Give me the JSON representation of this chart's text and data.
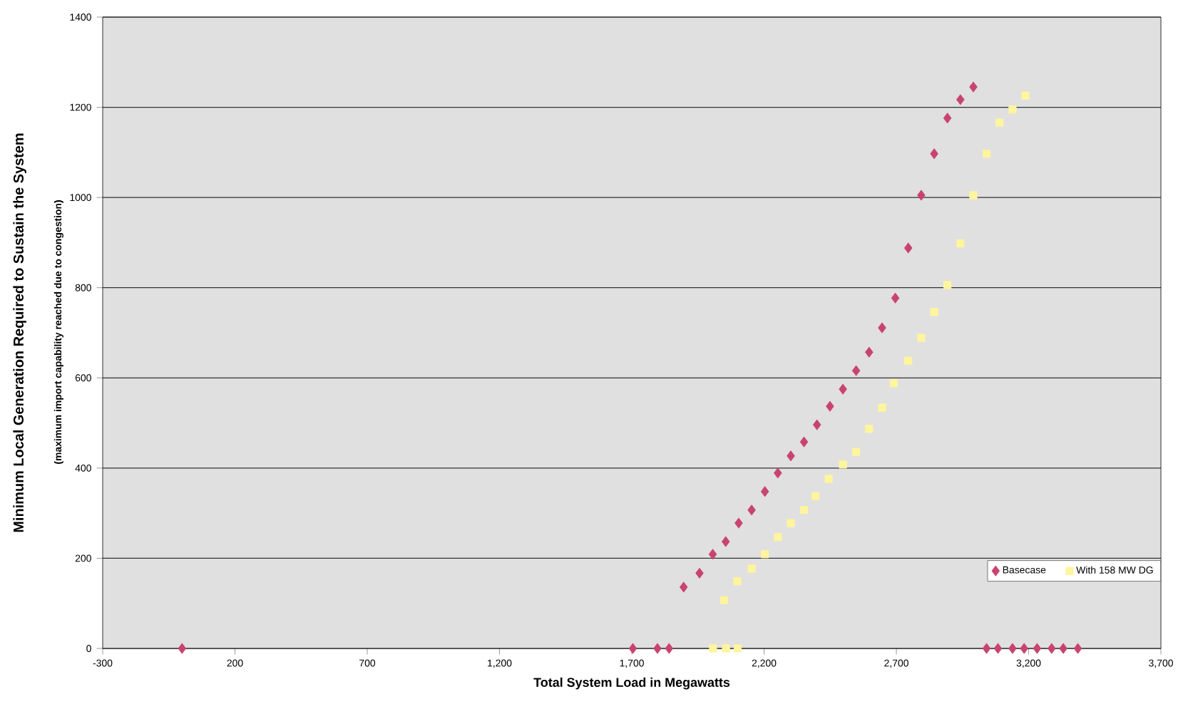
{
  "chart_data": {
    "type": "scatter",
    "xlabel": "Total System Load in Megawatts",
    "ylabel": "Minimum Local Generation Required to Sustain the System",
    "annotations": [
      "(maximum import capability reached due to congestion)"
    ],
    "xlim": [
      -300,
      3700
    ],
    "xticks": [
      -300,
      200,
      700,
      {
        "value": 1200,
        "label": "1,200"
      },
      {
        "value": 1700,
        "label": "1,700"
      },
      {
        "value": 2200,
        "label": "2,200"
      },
      {
        "value": 2700,
        "label": "2,700"
      },
      {
        "value": 3200,
        "label": "3,200"
      },
      {
        "value": 3700,
        "label": "3,700"
      }
    ],
    "ylim": [
      0,
      1400
    ],
    "yticks": [
      0,
      200,
      400,
      600,
      800,
      1000,
      1200,
      1400
    ],
    "grid": "y",
    "legend": "bottom right",
    "series": [
      {
        "name": "Basecase",
        "color": "#c8446e",
        "marker": "diamond",
        "x": [
          0,
          1704,
          1797,
          1841,
          1896,
          1956,
          2006,
          2055,
          2104,
          2153,
          2203,
          2252,
          2301,
          2351,
          2400,
          2449,
          2498,
          2548,
          2597,
          2646,
          2696,
          2745,
          2794,
          2843,
          2893,
          2942,
          2991,
          3041,
          3084,
          3139,
          3183,
          3232,
          3287,
          3331,
          3386
        ],
        "values": [
          0,
          0,
          0,
          0,
          136,
          167,
          209,
          237,
          278,
          307,
          348,
          389,
          427,
          458,
          496,
          537,
          575,
          616,
          657,
          711,
          777,
          888,
          1005,
          1097,
          1176,
          1217,
          1245,
          0,
          0,
          0,
          0,
          0,
          0,
          0,
          0
        ]
      },
      {
        "name": "With 158 MW DG",
        "color": "#fff59d",
        "marker": "square",
        "x": [
          2007,
          2056,
          2100,
          2049,
          2099,
          2153,
          2203,
          2252,
          2301,
          2351,
          2394,
          2444,
          2498,
          2548,
          2597,
          2646,
          2690,
          2745,
          2794,
          2843,
          2893,
          2942,
          2991,
          3041,
          3090,
          3139,
          3188
        ],
        "values": [
          0,
          0,
          0,
          107,
          149,
          177,
          209,
          247,
          278,
          307,
          338,
          376,
          408,
          436,
          487,
          534,
          588,
          638,
          689,
          746,
          806,
          898,
          1005,
          1097,
          1166,
          1195,
          1226
        ]
      }
    ]
  }
}
